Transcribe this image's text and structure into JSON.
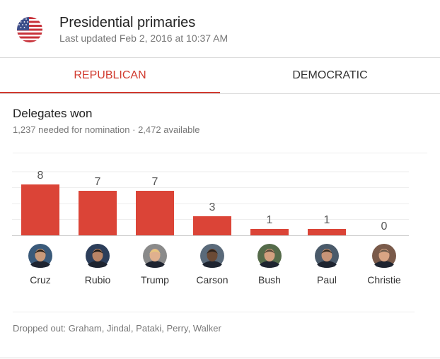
{
  "header": {
    "title": "Presidential primaries",
    "updated": "Last updated Feb 2, 2016 at 10:37 AM",
    "flag_icon": "us-flag-icon"
  },
  "tabs": [
    {
      "label": "REPUBLICAN",
      "active": true
    },
    {
      "label": "DEMOCRATIC",
      "active": false
    }
  ],
  "section": {
    "title": "Delegates won",
    "subtitle": "1,237 needed for nomination · 2,472 available"
  },
  "chart_data": {
    "type": "bar",
    "categories": [
      "Cruz",
      "Rubio",
      "Trump",
      "Carson",
      "Bush",
      "Paul",
      "Christie"
    ],
    "values": [
      8,
      7,
      7,
      3,
      1,
      1,
      0
    ],
    "ylim": [
      0,
      10
    ],
    "bar_color": "#db4437",
    "grid": true
  },
  "dropped_out": "Dropped out: Graham, Jindal, Pataki, Perry, Walker",
  "colors": {
    "accent": "#d13b2f",
    "bar": "#db4437"
  }
}
